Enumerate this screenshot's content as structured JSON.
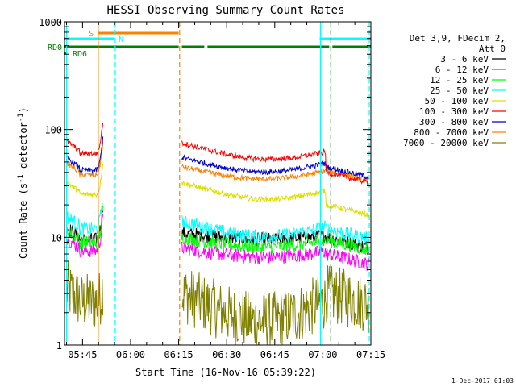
{
  "chart_data": {
    "type": "line",
    "title": "HESSI Observing Summary Count Rates",
    "xlabel": "Start Time (16-Nov-16 05:39:22)",
    "ylabel_main": "Count Rate (s",
    "ylabel_sup1": "-1",
    "ylabel_mid": " detector",
    "ylabel_sup2": "-1",
    "ylabel_end": ")",
    "x_range_min": [
      39.37,
      135
    ],
    "y_range": [
      1,
      1000
    ],
    "y_scale": "log",
    "x_ticks": [
      {
        "label": "05:45",
        "min": 45
      },
      {
        "label": "06:00",
        "min": 60
      },
      {
        "label": "06:15",
        "min": 75
      },
      {
        "label": "06:30",
        "min": 90
      },
      {
        "label": "06:45",
        "min": 105
      },
      {
        "label": "07:00",
        "min": 120
      },
      {
        "label": "07:15",
        "min": 135
      }
    ],
    "y_ticks": [
      {
        "label": "1",
        "v": 1
      },
      {
        "label": "10",
        "v": 10
      },
      {
        "label": "100",
        "v": 100
      },
      {
        "label": "1000",
        "v": 1000
      }
    ],
    "legend_header": [
      "Det 3,9, FDecim 2,",
      "Att 0"
    ],
    "series": [
      {
        "name": "3 - 6 keV",
        "color": "#000000",
        "levels": [
          9.5,
          11,
          9.5,
          10
        ]
      },
      {
        "name": "6 - 12 keV",
        "color": "#ff00ff",
        "levels": [
          7.5,
          8,
          6.5,
          7
        ]
      },
      {
        "name": "12 - 25 keV",
        "color": "#00ff00",
        "levels": [
          9,
          10,
          8,
          9.5
        ]
      },
      {
        "name": "25 - 50 keV",
        "color": "#00ffff",
        "levels": [
          12,
          14,
          10,
          12
        ]
      },
      {
        "name": "50 - 100 keV",
        "color": "#dddd00",
        "levels": [
          25,
          32,
          23,
          20
        ]
      },
      {
        "name": "100 - 300 keV",
        "color": "#ff0000",
        "levels": [
          60,
          75,
          55,
          40
        ]
      },
      {
        "name": "300 - 800 keV",
        "color": "#0000cc",
        "levels": [
          42,
          55,
          40,
          45
        ]
      },
      {
        "name": "800 - 7000 keV",
        "color": "#ff8000",
        "levels": [
          38,
          45,
          34,
          42
        ]
      },
      {
        "name": "7000 - 20000 keV",
        "color": "#808000",
        "levels": [
          2.5,
          3,
          1.5,
          3
        ]
      }
    ],
    "flags": [
      {
        "label": "S",
        "color": "#ff8000",
        "segments": [
          [
            50,
            75
          ]
        ]
      },
      {
        "label": "N",
        "color": "#00ffff",
        "segments": [
          [
            39.37,
            55
          ],
          [
            119,
            135
          ]
        ]
      },
      {
        "label": "RD0",
        "color": "#008000",
        "segments": [
          [
            39.37,
            75
          ],
          [
            76,
            83
          ],
          [
            84,
            122
          ],
          [
            123,
            135
          ]
        ]
      },
      {
        "label": "RD6",
        "color": "#008000",
        "segments": [
          [
            39.37,
            40
          ]
        ]
      }
    ],
    "vlines": [
      {
        "min": 40,
        "color": "#00ffff",
        "dash": false
      },
      {
        "min": 49.9,
        "color": "#ff8000",
        "dash": false
      },
      {
        "min": 55.2,
        "color": "#00ffff",
        "dash": true
      },
      {
        "min": 75.3,
        "color": "#ff8000",
        "dash": true
      },
      {
        "min": 119.3,
        "color": "#00ffff",
        "dash": false
      },
      {
        "min": 122.5,
        "color": "#008000",
        "dash": true
      },
      {
        "min": 134.5,
        "color": "#00ffff",
        "dash": true
      }
    ],
    "footer": "1-Dec-2017 01:03"
  }
}
